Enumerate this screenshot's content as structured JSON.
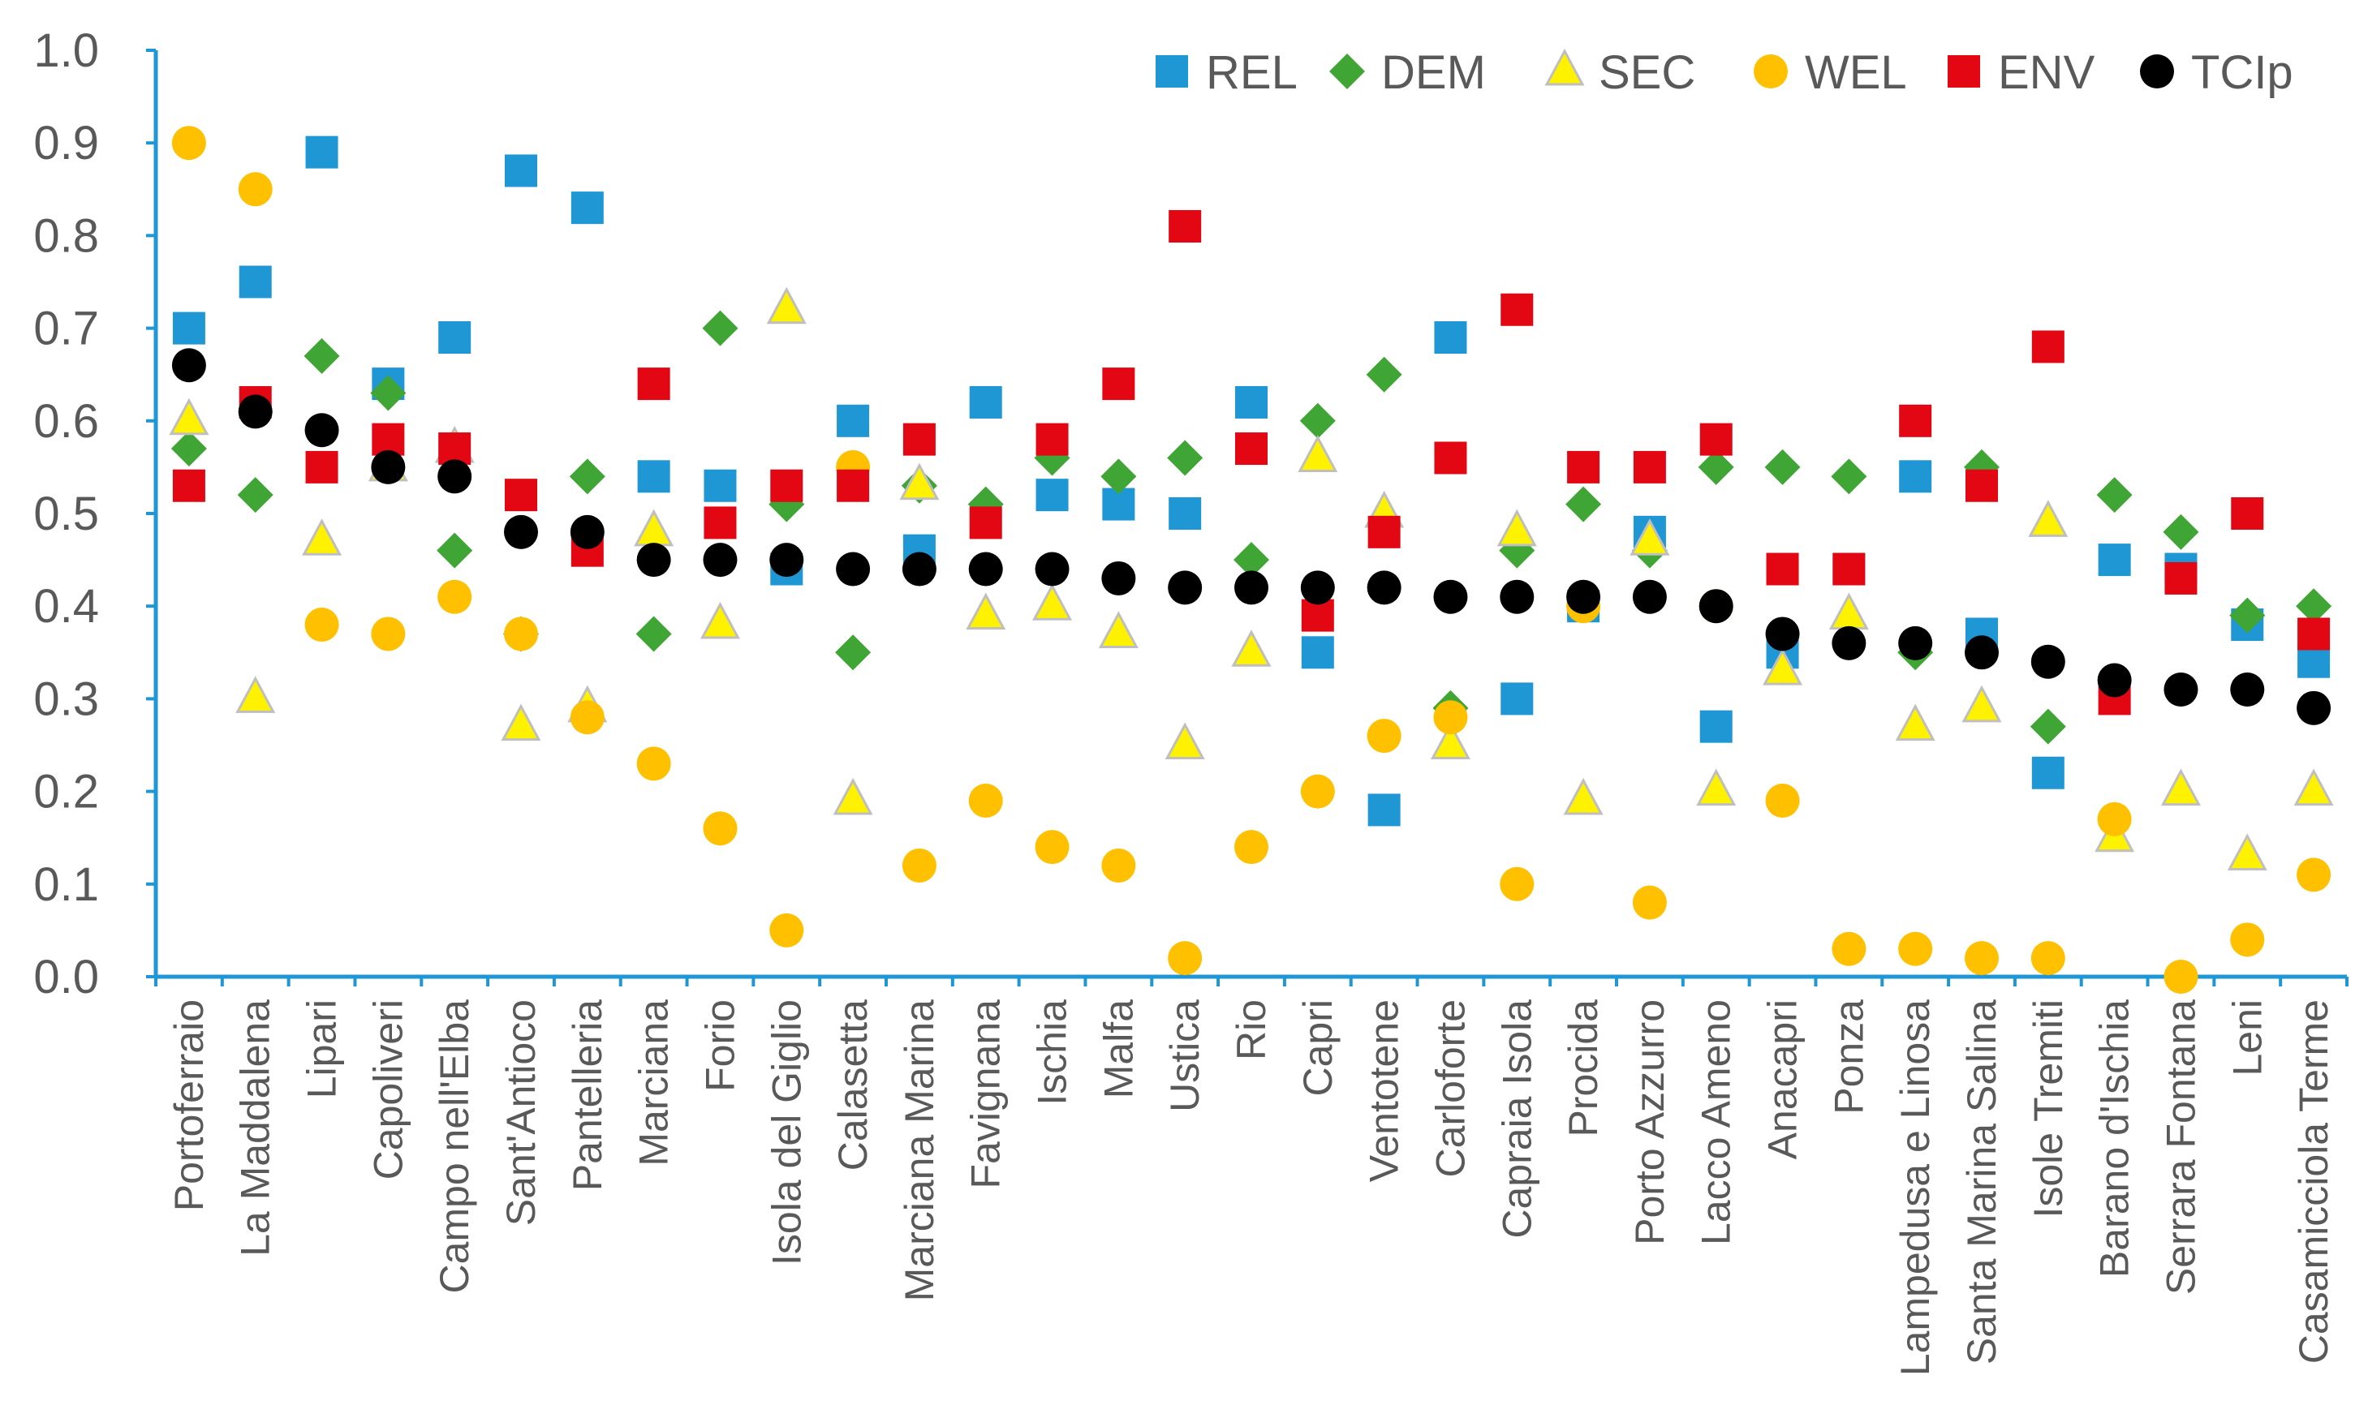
{
  "chart_data": {
    "type": "scatter",
    "title": "",
    "xlabel": "",
    "ylabel": "",
    "ylim": [
      0.0,
      1.0
    ],
    "yticks": [
      "0.0",
      "0.1",
      "0.2",
      "0.3",
      "0.4",
      "0.5",
      "0.6",
      "0.7",
      "0.8",
      "0.9",
      "1.0"
    ],
    "grid": false,
    "legend_position": "top-right",
    "categories": [
      "Portoferraio",
      "La Maddalena",
      "Lipari",
      "Capoliveri",
      "Campo nell'Elba",
      "Sant'Antioco",
      "Pantelleria",
      "Marciana",
      "Forio",
      "Isola del Giglio",
      "Calasetta",
      "Marciana Marina",
      "Favignana",
      "Ischia",
      "Malfa",
      "Ustica",
      "Rio",
      "Capri",
      "Ventotene",
      "Carloforte",
      "Capraia Isola",
      "Procida",
      "Porto Azzurro",
      "Lacco Ameno",
      "Anacapri",
      "Ponza",
      "Lampedusa e Linosa",
      "Santa Marina Salina",
      "Isole Tremiti",
      "Barano d'Ischia",
      "Serrara Fontana",
      "Leni",
      "Casamicciola Terme"
    ],
    "series": [
      {
        "name": "REL",
        "marker": "square",
        "color": "#1F97D4",
        "values": [
          0.7,
          0.75,
          0.89,
          0.64,
          0.69,
          0.87,
          0.83,
          0.54,
          0.53,
          0.44,
          0.6,
          0.46,
          0.62,
          0.52,
          0.51,
          0.5,
          0.62,
          0.35,
          0.18,
          0.69,
          0.3,
          0.4,
          0.48,
          0.27,
          0.35,
          0.44,
          0.54,
          0.37,
          0.22,
          0.45,
          0.44,
          0.38,
          0.34
        ]
      },
      {
        "name": "DEM",
        "marker": "diamond",
        "color": "#3FA535",
        "values": [
          0.57,
          0.52,
          0.67,
          0.63,
          0.46,
          0.37,
          0.54,
          0.37,
          0.7,
          0.51,
          0.35,
          0.53,
          0.51,
          0.56,
          0.54,
          0.56,
          0.45,
          0.6,
          0.65,
          0.29,
          0.46,
          0.51,
          0.46,
          0.55,
          0.55,
          0.54,
          0.35,
          0.55,
          0.27,
          0.52,
          0.48,
          0.39,
          0.4
        ]
      },
      {
        "name": "SEC",
        "marker": "triangle",
        "color": "#FFF200",
        "values": [
          0.6,
          0.3,
          0.47,
          0.55,
          0.57,
          0.27,
          0.29,
          0.48,
          0.38,
          0.72,
          0.19,
          0.53,
          0.39,
          0.4,
          0.37,
          0.25,
          0.35,
          0.56,
          0.5,
          0.25,
          0.48,
          0.19,
          0.47,
          0.2,
          0.33,
          0.39,
          0.27,
          0.29,
          0.49,
          0.15,
          0.2,
          0.13,
          0.2
        ]
      },
      {
        "name": "WEL",
        "marker": "circle",
        "color": "#FFC000",
        "values": [
          0.9,
          0.85,
          0.38,
          0.37,
          0.41,
          0.37,
          0.28,
          0.23,
          0.16,
          0.05,
          0.55,
          0.12,
          0.19,
          0.14,
          0.12,
          0.02,
          0.14,
          0.2,
          0.26,
          0.28,
          0.1,
          0.4,
          0.08,
          0.4,
          0.19,
          0.03,
          0.03,
          0.02,
          0.02,
          0.17,
          0.0,
          0.04,
          0.11
        ]
      },
      {
        "name": "ENV",
        "marker": "square",
        "color": "#E30613",
        "values": [
          0.53,
          0.62,
          0.55,
          0.58,
          0.57,
          0.52,
          0.46,
          0.64,
          0.49,
          0.53,
          0.53,
          0.58,
          0.49,
          0.58,
          0.64,
          0.81,
          0.57,
          0.39,
          0.48,
          0.56,
          0.72,
          0.55,
          0.55,
          0.58,
          0.44,
          0.44,
          0.6,
          0.53,
          0.68,
          0.3,
          0.43,
          0.5,
          0.37
        ]
      },
      {
        "name": "TCIp",
        "marker": "circle",
        "color": "#000000",
        "values": [
          0.66,
          0.61,
          0.59,
          0.55,
          0.54,
          0.48,
          0.48,
          0.45,
          0.45,
          0.45,
          0.44,
          0.44,
          0.44,
          0.44,
          0.43,
          0.42,
          0.42,
          0.42,
          0.42,
          0.41,
          0.41,
          0.41,
          0.41,
          0.4,
          0.37,
          0.36,
          0.36,
          0.35,
          0.34,
          0.32,
          0.31,
          0.31,
          0.29
        ]
      }
    ]
  }
}
